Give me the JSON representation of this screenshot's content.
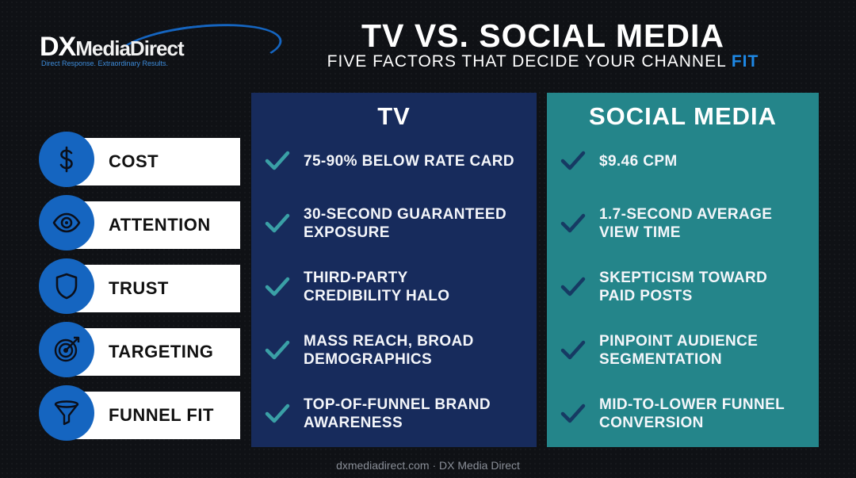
{
  "logo": {
    "dx": "DX",
    "name": "MediaDirect",
    "tagline": "Direct Response. Extraordinary Results."
  },
  "header": {
    "title": "TV VS. SOCIAL MEDIA",
    "subtitle": "FIVE FACTORS THAT DECIDE YOUR CHANNEL",
    "subtitle_accent": "FIT"
  },
  "factors": [
    {
      "label": "COST",
      "icon": "dollar-icon"
    },
    {
      "label": "ATTENTION",
      "icon": "eye-icon"
    },
    {
      "label": "TRUST",
      "icon": "shield-icon"
    },
    {
      "label": "TARGETING",
      "icon": "target-icon"
    },
    {
      "label": "FUNNEL FIT",
      "icon": "funnel-icon"
    }
  ],
  "columns": {
    "tv": {
      "heading": "TV",
      "items": [
        {
          "line1": "75-90% BELOW RATE CARD",
          "line2": ""
        },
        {
          "line1": "30-SECOND GUARANTEED",
          "line2": "EXPOSURE"
        },
        {
          "line1": "THIRD-PARTY",
          "line2": "CREDIBILITY HALO"
        },
        {
          "line1": "MASS REACH, BROAD",
          "line2": "DEMOGRAPHICS"
        },
        {
          "line1": "TOP-OF-FUNNEL BRAND",
          "line2": "AWARENESS"
        }
      ]
    },
    "social": {
      "heading": "SOCIAL MEDIA",
      "items": [
        {
          "line1": "$9.46 CPM",
          "line2": ""
        },
        {
          "line1": "1.7-SECOND AVERAGE",
          "line2": "VIEW TIME"
        },
        {
          "line1": "SKEPTICISM TOWARD",
          "line2": "PAID POSTS"
        },
        {
          "line1": "PINPOINT AUDIENCE",
          "line2": "SEGMENTATION"
        },
        {
          "line1": "MID-TO-LOWER FUNNEL",
          "line2": "CONVERSION"
        }
      ]
    }
  },
  "footer": "dxmediadirect.com · DX Media Direct",
  "colors": {
    "background": "#0f1115",
    "accent_blue": "#1565c0",
    "tv_column": "#172b5c",
    "social_column": "#24858a",
    "tv_check": "#3aa0a6",
    "social_check": "#163a63"
  }
}
